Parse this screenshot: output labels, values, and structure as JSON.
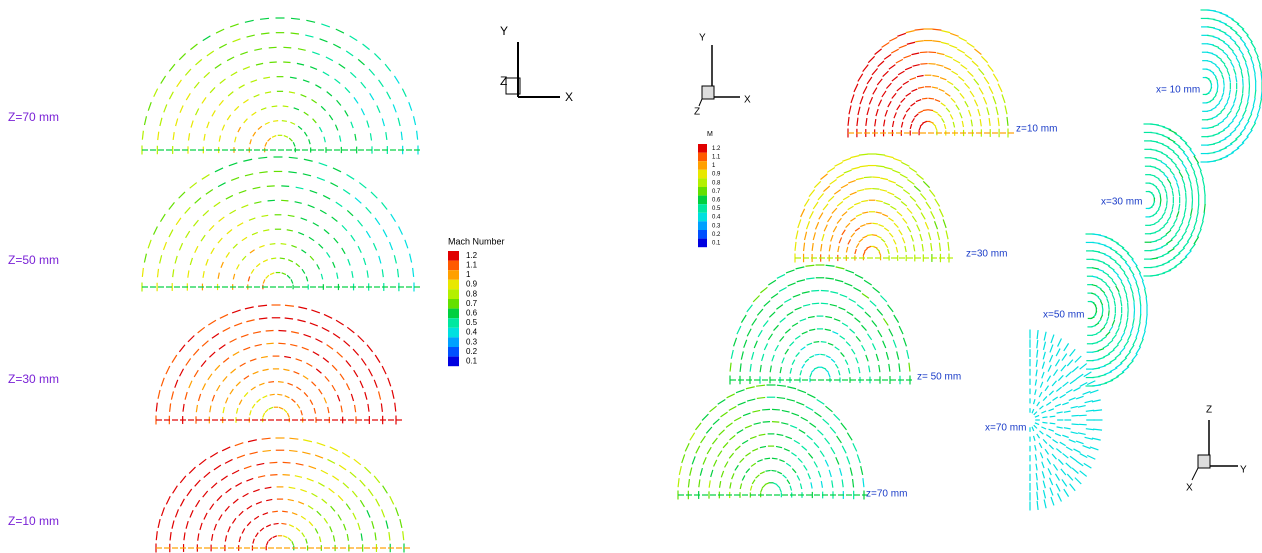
{
  "left": {
    "plot_labels": [
      "Z=70 mm",
      "Z=50 mm",
      "Z=30 mm",
      "Z=10 mm"
    ],
    "triad": {
      "y": "Y",
      "x": "X",
      "z": "Z"
    },
    "colorbar": {
      "title": "Mach Number",
      "levels": [
        1.2,
        1.1,
        1,
        0.9,
        0.8,
        0.7,
        0.6,
        0.5,
        0.4,
        0.3,
        0.2,
        0.1
      ],
      "colors": [
        "#e00000",
        "#ff5a00",
        "#ffa000",
        "#e8e800",
        "#b4f000",
        "#64e000",
        "#00d040",
        "#00e8a0",
        "#00e0e0",
        "#00a0ff",
        "#0050ff",
        "#0000e0"
      ]
    }
  },
  "right": {
    "z_labels": [
      "z=10 mm",
      "z=30 mm",
      "z= 50 mm",
      "z=70 mm"
    ],
    "x_labels": [
      "x= 10 mm",
      "x=30 mm",
      "x=50 mm",
      "x=70 mm"
    ],
    "triad_top": {
      "y": "Y",
      "x": "X",
      "z": "Z"
    },
    "triad_bottom": {
      "z": "Z",
      "y": "Y",
      "x": "X"
    },
    "colorbar": {
      "title": "M",
      "levels": [
        1.2,
        1.1,
        1,
        0.9,
        0.8,
        0.7,
        0.6,
        0.5,
        0.4,
        0.3,
        0.2,
        0.1
      ],
      "colors": [
        "#e00000",
        "#ff5a00",
        "#ffa000",
        "#e8e800",
        "#b4f000",
        "#64e000",
        "#00d040",
        "#00e8a0",
        "#00e0e0",
        "#00a0ff",
        "#0050ff",
        "#0000e0"
      ]
    }
  }
}
